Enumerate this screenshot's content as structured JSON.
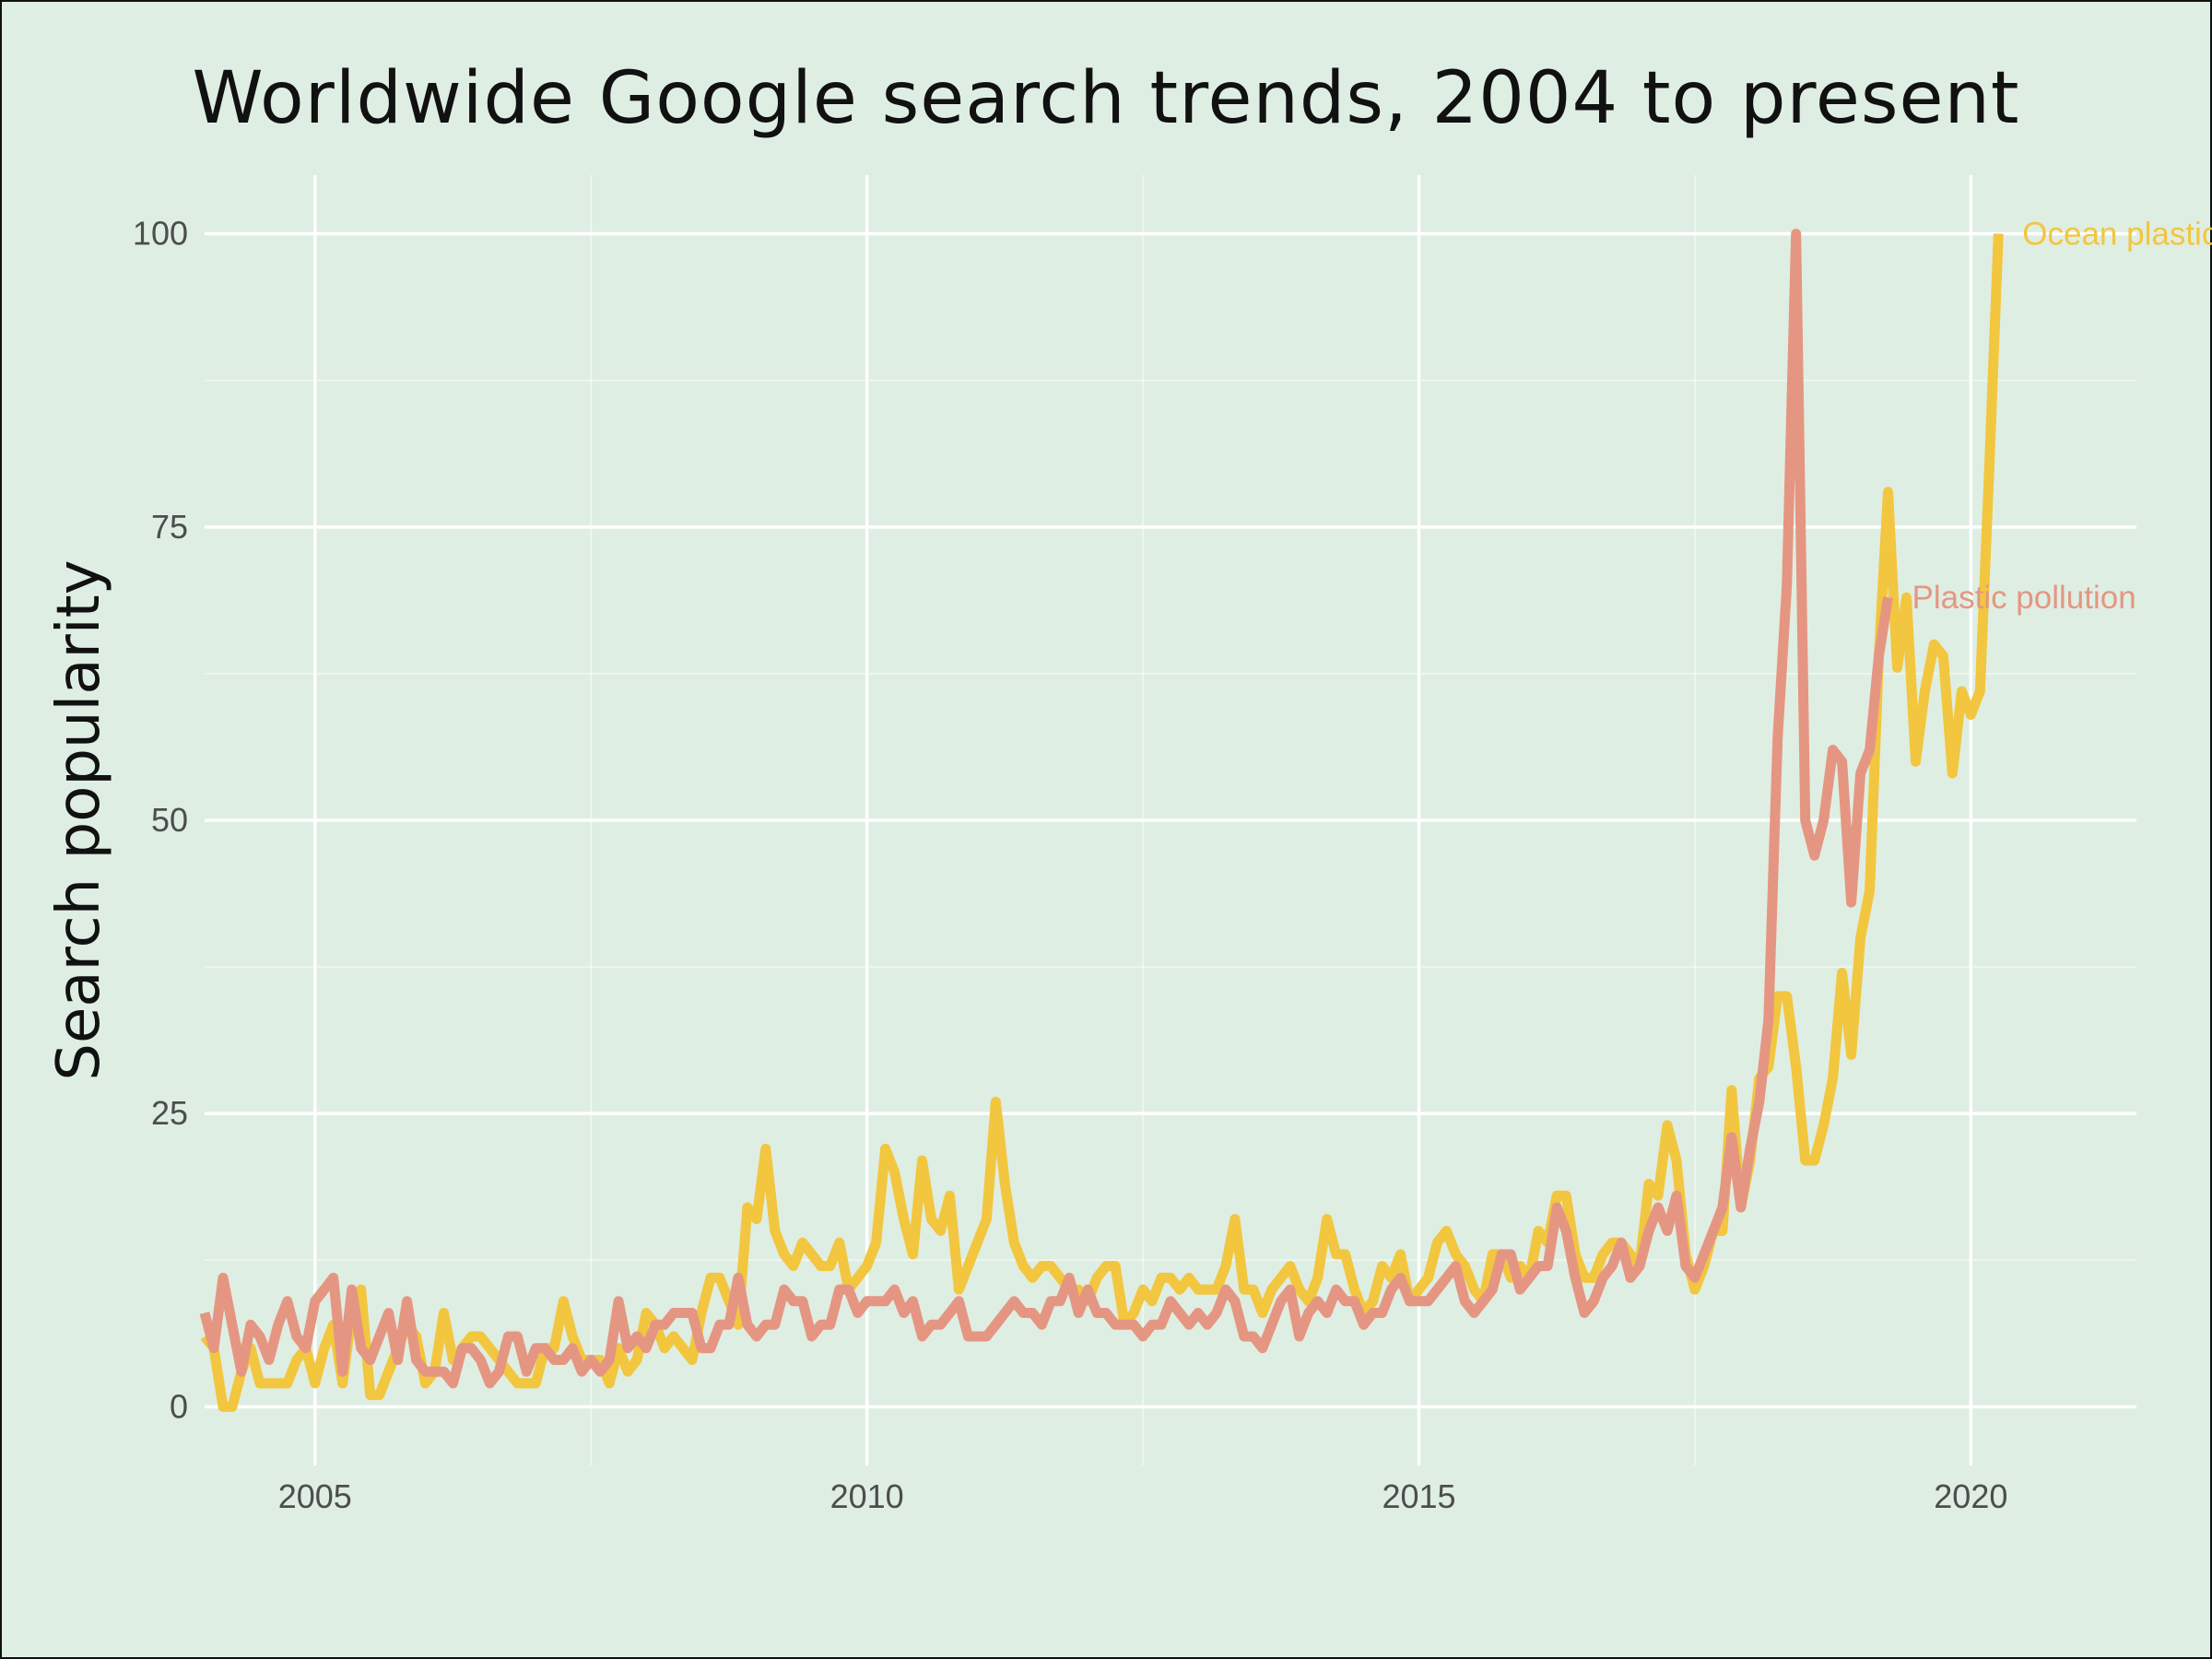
{
  "chart_data": {
    "type": "line",
    "title": "Worldwide Google search trends, 2004 to present",
    "xlabel": "",
    "ylabel": "Search popularity",
    "xlim": [
      2004.0,
      2021.5
    ],
    "ylim": [
      -5,
      105
    ],
    "x_ticks": [
      2005,
      2010,
      2015,
      2020
    ],
    "x_tick_labels": [
      "2005",
      "2010",
      "2015",
      "2020"
    ],
    "y_ticks": [
      0,
      25,
      50,
      75,
      100
    ],
    "y_tick_labels": [
      "0",
      "25",
      "50",
      "75",
      "100"
    ],
    "grid": true,
    "legend": "direct labels at line ends",
    "background_color": "#dfeee2",
    "x_start": 2004.0,
    "x_step_months": 1,
    "series": [
      {
        "name": "Ocean plastic",
        "color": "#f2c63f",
        "values": [
          6,
          5,
          0,
          0,
          3,
          5,
          2,
          2,
          2,
          2,
          4,
          5,
          2,
          5,
          7,
          2,
          8,
          10,
          1,
          1,
          3,
          5,
          7,
          6,
          2,
          3,
          8,
          4,
          5,
          6,
          6,
          5,
          4,
          3,
          2,
          2,
          2,
          5,
          5,
          9,
          6,
          4,
          4,
          4,
          2,
          5,
          3,
          4,
          8,
          7,
          5,
          6,
          5,
          4,
          8,
          11,
          11,
          9,
          7,
          17,
          16,
          22,
          15,
          13,
          12,
          14,
          13,
          12,
          12,
          14,
          10,
          11,
          12,
          14,
          22,
          20,
          16,
          13,
          21,
          16,
          15,
          18,
          10,
          12,
          14,
          16,
          26,
          19,
          14,
          12,
          11,
          12,
          12,
          11,
          10,
          10,
          9,
          11,
          12,
          12,
          7,
          8,
          10,
          9,
          11,
          11,
          10,
          11,
          10,
          10,
          10,
          12,
          16,
          10,
          10,
          8,
          10,
          11,
          12,
          10,
          9,
          11,
          16,
          13,
          13,
          10,
          8,
          9,
          12,
          11,
          13,
          9,
          10,
          11,
          14,
          15,
          13,
          12,
          10,
          9,
          13,
          13,
          11,
          12,
          11,
          15,
          14,
          18,
          18,
          13,
          11,
          11,
          13,
          14,
          14,
          13,
          12,
          19,
          18,
          24,
          21,
          13,
          10,
          12,
          15,
          15,
          27,
          17,
          21,
          28,
          29,
          35,
          35,
          29,
          21,
          21,
          24,
          28,
          37,
          30,
          40,
          44,
          64,
          78,
          63,
          69,
          55,
          61,
          65,
          64,
          54,
          61,
          59,
          61,
          80,
          100
        ]
      },
      {
        "name": "Plastic pollution",
        "color": "#e59682",
        "values": [
          8,
          5,
          11,
          7,
          3,
          7,
          6,
          4,
          7,
          9,
          6,
          5,
          9,
          10,
          11,
          3,
          10,
          5,
          4,
          6,
          8,
          4,
          9,
          4,
          3,
          3,
          3,
          2,
          5,
          5,
          4,
          2,
          3,
          6,
          6,
          3,
          5,
          5,
          4,
          4,
          5,
          3,
          4,
          3,
          4,
          9,
          5,
          6,
          5,
          7,
          7,
          8,
          8,
          8,
          5,
          5,
          7,
          7,
          11,
          7,
          6,
          7,
          7,
          10,
          9,
          9,
          6,
          7,
          7,
          10,
          10,
          8,
          9,
          9,
          9,
          10,
          8,
          9,
          6,
          7,
          7,
          8,
          9,
          6,
          6,
          6,
          7,
          8,
          9,
          8,
          8,
          7,
          9,
          9,
          11,
          8,
          10,
          8,
          8,
          7,
          7,
          7,
          6,
          7,
          7,
          9,
          8,
          7,
          8,
          7,
          8,
          10,
          9,
          6,
          6,
          5,
          7,
          9,
          10,
          6,
          8,
          9,
          8,
          10,
          9,
          9,
          7,
          8,
          8,
          10,
          11,
          9,
          9,
          9,
          10,
          11,
          12,
          9,
          8,
          9,
          10,
          13,
          13,
          10,
          11,
          12,
          12,
          17,
          15,
          11,
          8,
          9,
          11,
          12,
          14,
          11,
          12,
          15,
          17,
          15,
          18,
          12,
          11,
          13,
          15,
          17,
          23,
          17,
          22,
          26,
          33,
          57,
          70,
          100,
          50,
          47,
          50,
          56,
          55,
          43,
          54,
          56,
          64,
          69
        ]
      }
    ]
  }
}
